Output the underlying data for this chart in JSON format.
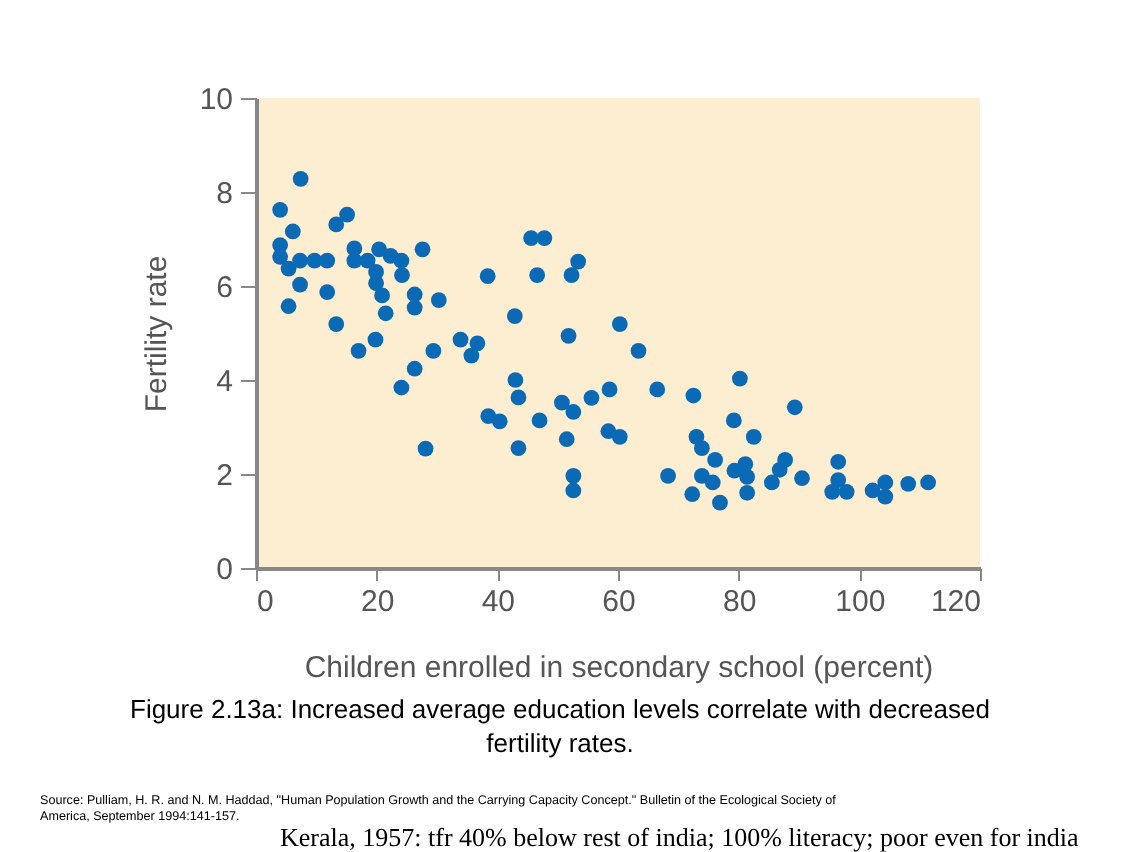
{
  "chart_data": {
    "type": "scatter",
    "xlabel": "Children enrolled in secondary school (percent)",
    "ylabel": "Fertility rate",
    "annotations": [
      "Figure 2.13a: Increased average education levels correlate with decreased fertility rates.",
      "Source: Pulliam, H. R. and N. M. Haddad, \"Human Population Growth and the Carrying Capacity Concept.\" Bulletin of the Ecological Society of America, September 1994:141-157.",
      "Kerala, 1957: tfr 40% below rest of india; 100% literacy; poor even for india"
    ],
    "x": [
      7.4,
      4.0,
      15.1,
      13.3,
      6.1,
      4.0,
      4.0,
      5.4,
      7.3,
      9.7,
      11.8,
      16.3,
      16.3,
      18.5,
      20.4,
      22.3,
      24.1,
      27.6,
      19.9,
      24.2,
      19.9,
      7.3,
      11.8,
      20.9,
      26.3,
      26.3,
      30.3,
      5.4,
      21.5,
      13.3,
      38.4,
      19.8,
      17.0,
      29.4,
      33.9,
      36.7,
      35.7,
      26.3,
      24.1,
      38.5,
      40.4,
      28.1,
      45.6,
      47.8,
      53.4,
      46.6,
      52.3,
      42.9,
      60.3,
      51.8,
      63.4,
      43.0,
      43.5,
      50.7,
      52.6,
      55.6,
      58.6,
      66.5,
      72.5,
      47.0,
      43.5,
      51.5,
      58.4,
      60.3,
      52.6,
      52.6,
      68.3,
      73.0,
      73.9,
      76.1,
      73.9,
      75.7,
      72.3,
      76.9,
      80.2,
      89.3,
      79.2,
      82.5,
      79.3,
      81.1,
      81.4,
      81.4,
      85.5,
      86.8,
      87.7,
      90.5,
      96.5,
      96.5,
      95.5,
      97.9,
      102.2,
      104.3,
      104.3,
      108.1,
      111.4
    ],
    "series": [
      {
        "color": "#0b6ab5",
        "values": [
          8.28,
          7.62,
          7.52,
          7.31,
          7.16,
          6.87,
          6.62,
          6.37,
          6.54,
          6.54,
          6.54,
          6.8,
          6.54,
          6.54,
          6.78,
          6.64,
          6.54,
          6.78,
          6.3,
          6.23,
          6.06,
          6.03,
          5.87,
          5.8,
          5.82,
          5.54,
          5.7,
          5.57,
          5.42,
          5.19,
          6.21,
          4.86,
          4.62,
          4.62,
          4.86,
          4.78,
          4.52,
          4.24,
          3.84,
          3.23,
          3.12,
          2.54,
          7.02,
          7.02,
          6.52,
          6.23,
          6.23,
          5.36,
          5.19,
          4.94,
          4.62,
          4.0,
          3.63,
          3.52,
          3.32,
          3.62,
          3.8,
          3.8,
          3.67,
          3.14,
          2.55,
          2.74,
          2.91,
          2.79,
          1.96,
          1.65,
          1.96,
          2.79,
          2.55,
          2.3,
          1.96,
          1.82,
          1.57,
          1.39,
          4.03,
          3.42,
          3.14,
          2.79,
          2.07,
          2.21,
          1.94,
          1.6,
          1.82,
          2.09,
          2.3,
          1.91,
          2.26,
          1.87,
          1.62,
          1.62,
          1.65,
          1.82,
          1.52,
          1.79,
          1.82
        ]
      }
    ],
    "xlim": [
      0,
      120
    ],
    "xticks": [
      0,
      20,
      40,
      60,
      80,
      100,
      120
    ],
    "ylim": [
      0,
      10
    ],
    "yticks": [
      0,
      2,
      4,
      6,
      8,
      10
    ],
    "grid": false,
    "legend": false,
    "marker": "circle"
  }
}
